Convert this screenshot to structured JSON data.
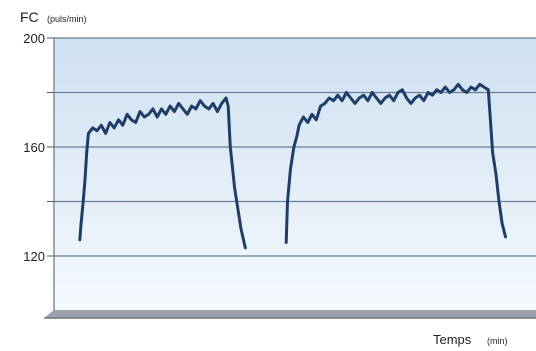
{
  "chart_data": {
    "type": "line",
    "ylabel": "FC",
    "ylabel_unit": "(puls/min)",
    "xlabel": "Temps",
    "xlabel_unit": "(min)",
    "ylim": [
      100,
      200
    ],
    "yticks": [
      200,
      160,
      120
    ],
    "xlim": [
      0,
      100
    ],
    "grid": true,
    "colors": {
      "line": "#1f3d66",
      "plot_bg_top": "#cfe0f1",
      "plot_bg_bottom": "#f4f9fd",
      "grid": "#6a7f96"
    },
    "series": [
      {
        "x": [
          6.0,
          6.3,
          6.8,
          7.2,
          7.6,
          8.0,
          9.0,
          10.0,
          11.0,
          12.0,
          13.0,
          14.0,
          15.0,
          16.0,
          17.0,
          18.0,
          19.0,
          20.0,
          21.0,
          22.0,
          23.0,
          24.0,
          25.0,
          26.0,
          27.0,
          28.0,
          29.0,
          30.0,
          31.0,
          32.0,
          33.0,
          34.0,
          35.0,
          36.0,
          37.0,
          38.0,
          39.0,
          40.0,
          40.5,
          41.0,
          42.0,
          43.5,
          44.5
        ],
        "y": [
          126,
          132,
          140,
          148,
          158,
          165,
          167,
          166,
          168,
          165,
          169,
          167,
          170,
          168,
          172,
          170,
          169,
          173,
          171,
          172,
          174,
          171,
          174,
          172,
          175,
          173,
          176,
          174,
          172,
          175,
          174,
          177,
          175,
          174,
          176,
          173,
          176,
          178,
          175,
          160,
          145,
          130,
          123
        ]
      },
      {
        "x": [
          54.0,
          54.3,
          55.0,
          55.8,
          56.5,
          57.0,
          58.0,
          59.0,
          60.0,
          61.0,
          62.0,
          63.0,
          64.0,
          65.0,
          66.0,
          67.0,
          68.0,
          69.0,
          70.0,
          71.0,
          72.0,
          73.0,
          74.0,
          75.0,
          76.0,
          77.0,
          78.0,
          79.0,
          80.0,
          81.0,
          82.0,
          83.0,
          84.0,
          85.0,
          86.0,
          87.0,
          88.0,
          89.0,
          90.0,
          91.0,
          92.0,
          93.0,
          94.0,
          95.0,
          96.0,
          97.0,
          98.0,
          99.0,
          100.0,
          101.0,
          101.5,
          102.0,
          102.8,
          103.5,
          104.2,
          105.0
        ],
        "y": [
          125,
          140,
          152,
          160,
          164,
          168,
          171,
          169,
          172,
          170,
          175,
          176,
          178,
          177,
          179,
          177,
          180,
          178,
          176,
          178,
          179,
          177,
          180,
          178,
          176,
          178,
          179,
          177,
          180,
          181,
          178,
          176,
          178,
          179,
          177,
          180,
          179,
          181,
          180,
          182,
          180,
          181,
          183,
          181,
          180,
          182,
          181,
          183,
          182,
          181,
          170,
          158,
          150,
          140,
          132,
          127
        ]
      }
    ]
  }
}
